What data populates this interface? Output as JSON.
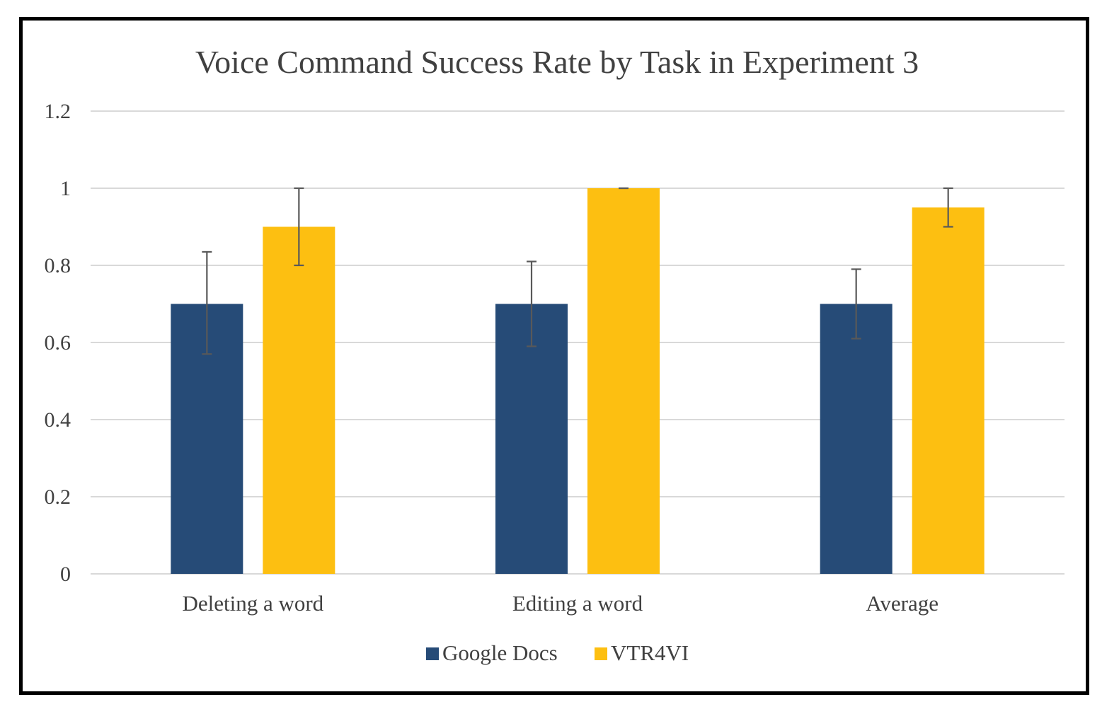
{
  "chart_data": {
    "type": "bar",
    "title": "Voice Command Success Rate by Task in Experiment 3",
    "xlabel": "",
    "ylabel": "",
    "categories": [
      "Deleting a word",
      "Editing a word",
      "Average"
    ],
    "series": [
      {
        "name": "Google Docs",
        "color": "#264b77",
        "values": [
          0.7,
          0.7,
          0.7
        ],
        "error_low": [
          0.57,
          0.59,
          0.61
        ],
        "error_high": [
          0.835,
          0.81,
          0.79
        ]
      },
      {
        "name": "VTR4VI",
        "color": "#fdbf11",
        "values": [
          0.9,
          1.0,
          0.95
        ],
        "error_low": [
          0.8,
          1.0,
          0.9
        ],
        "error_high": [
          1.0,
          1.0,
          1.0
        ]
      }
    ],
    "ylim": [
      0,
      1.2
    ],
    "yticks": [
      "0",
      "0.2",
      "0.4",
      "0.6",
      "0.8",
      "1",
      "1.2"
    ],
    "ytick_values": [
      0,
      0.2,
      0.4,
      0.6,
      0.8,
      1,
      1.2
    ],
    "grid": true,
    "legend": "bottom"
  }
}
